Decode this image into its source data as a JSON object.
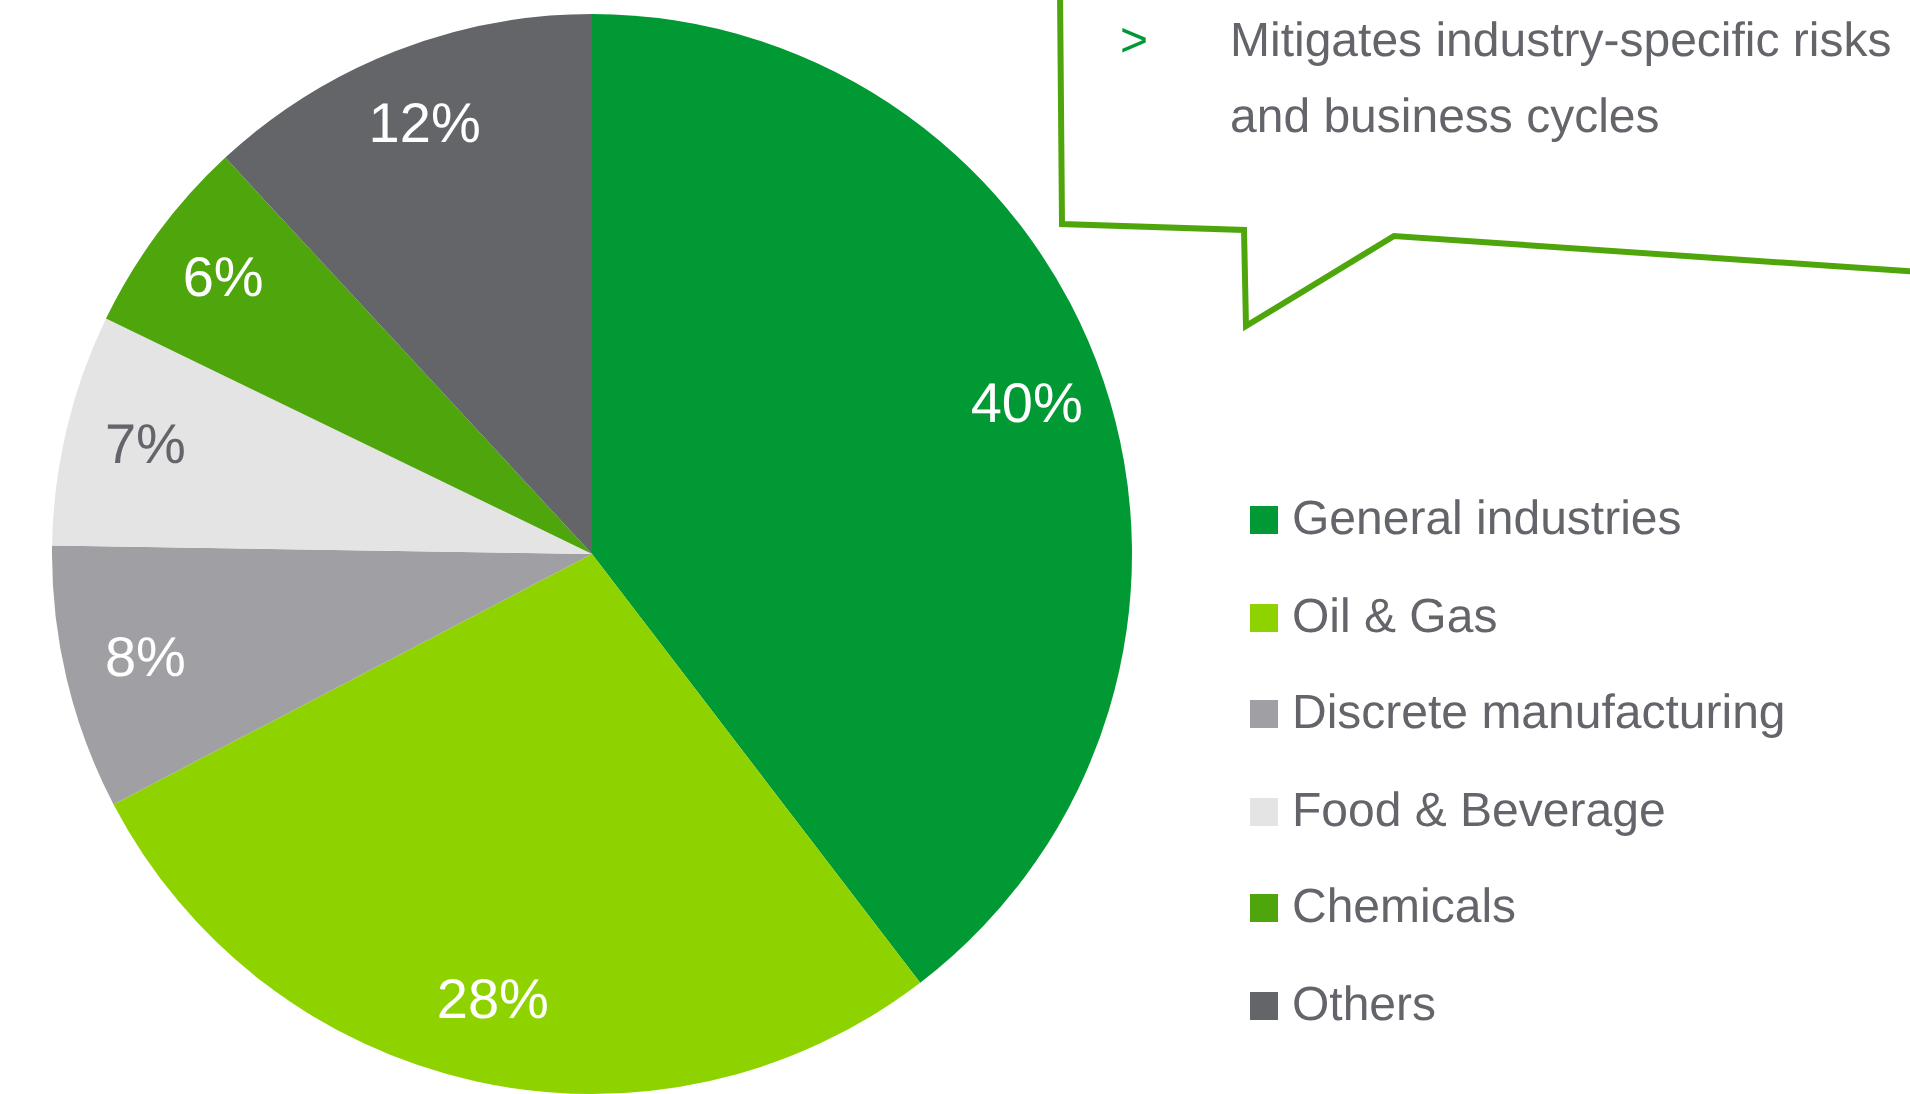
{
  "chart_data": {
    "type": "pie",
    "categories": [
      "General industries",
      "Oil & Gas",
      "Discrete manufacturing",
      "Food & Beverage",
      "Chemicals",
      "Others"
    ],
    "values": [
      40,
      28,
      8,
      7,
      6,
      12
    ],
    "colors": [
      "#009933",
      "#8ed300",
      "#a0a0a4",
      "#e4e4e4",
      "#4ea60c",
      "#636569"
    ],
    "value_labels": [
      "40%",
      "28%",
      "8%",
      "7%",
      "6%",
      "12%"
    ],
    "legend": "right",
    "annotations": [
      "> Mitigates industry-specific risks and business cycles"
    ]
  }
}
